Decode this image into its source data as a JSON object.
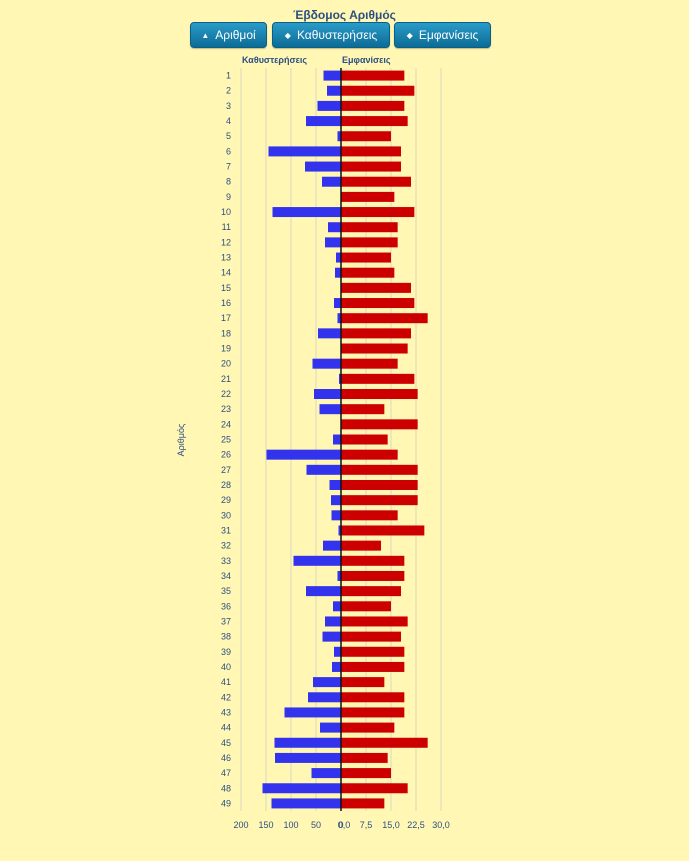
{
  "title": "Έβδομος Αριθμός",
  "buttons": {
    "numbers": {
      "label": "Αριθμοί",
      "icon": "sort-up-icon"
    },
    "delays": {
      "label": "Καθυστερήσεις",
      "icon": "sort-icon"
    },
    "appearances": {
      "label": "Εμφανίσεις",
      "icon": "sort-icon"
    }
  },
  "colors": {
    "delays": "#3333ee",
    "appearances": "#cc0000",
    "accent": "#1a86b8"
  },
  "chart_data": {
    "type": "bar",
    "orientation": "horizontal",
    "ylabel": "Αριθμός",
    "categories": [
      "1",
      "2",
      "3",
      "4",
      "5",
      "6",
      "7",
      "8",
      "9",
      "10",
      "11",
      "12",
      "13",
      "14",
      "15",
      "16",
      "17",
      "18",
      "19",
      "20",
      "21",
      "22",
      "23",
      "24",
      "25",
      "26",
      "27",
      "28",
      "29",
      "30",
      "31",
      "32",
      "33",
      "34",
      "35",
      "36",
      "37",
      "38",
      "39",
      "40",
      "41",
      "42",
      "43",
      "44",
      "45",
      "46",
      "47",
      "48",
      "49"
    ],
    "series": [
      {
        "name": "Καθυστερήσεις",
        "side": "left",
        "xlim": [
          200,
          0
        ],
        "ticks": [
          "200",
          "150",
          "100",
          "50",
          "0"
        ],
        "values": [
          35,
          28,
          47,
          70,
          7,
          145,
          72,
          38,
          0,
          137,
          26,
          32,
          10,
          12,
          0,
          14,
          7,
          46,
          0,
          57,
          4,
          54,
          43,
          0,
          16,
          149,
          69,
          23,
          20,
          19,
          5,
          36,
          95,
          7,
          70,
          16,
          32,
          37,
          14,
          18,
          56,
          66,
          113,
          42,
          133,
          132,
          59,
          157,
          139
        ]
      },
      {
        "name": "Εμφανίσεις",
        "side": "right",
        "xlim": [
          0,
          30
        ],
        "ticks": [
          "0,0",
          "7,5",
          "15,0",
          "22,5",
          "30,0"
        ],
        "values": [
          19,
          22,
          19,
          20,
          15,
          18,
          18,
          21,
          16,
          22,
          17,
          17,
          15,
          16,
          21,
          22,
          26,
          21,
          20,
          17,
          22,
          23,
          13,
          23,
          14,
          17,
          23,
          23,
          23,
          17,
          25,
          12,
          19,
          19,
          18,
          15,
          20,
          18,
          19,
          19,
          13,
          19,
          19,
          16,
          26,
          14,
          15,
          20,
          13
        ]
      }
    ],
    "grid": true
  }
}
